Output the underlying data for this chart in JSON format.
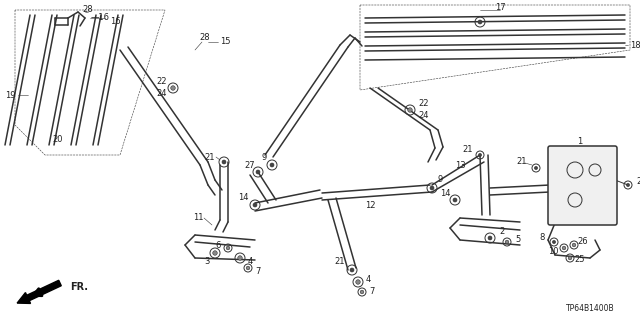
{
  "part_code": "TP64B1400B",
  "bg_color": "#ffffff",
  "fig_width": 6.4,
  "fig_height": 3.19,
  "dpi": 100
}
